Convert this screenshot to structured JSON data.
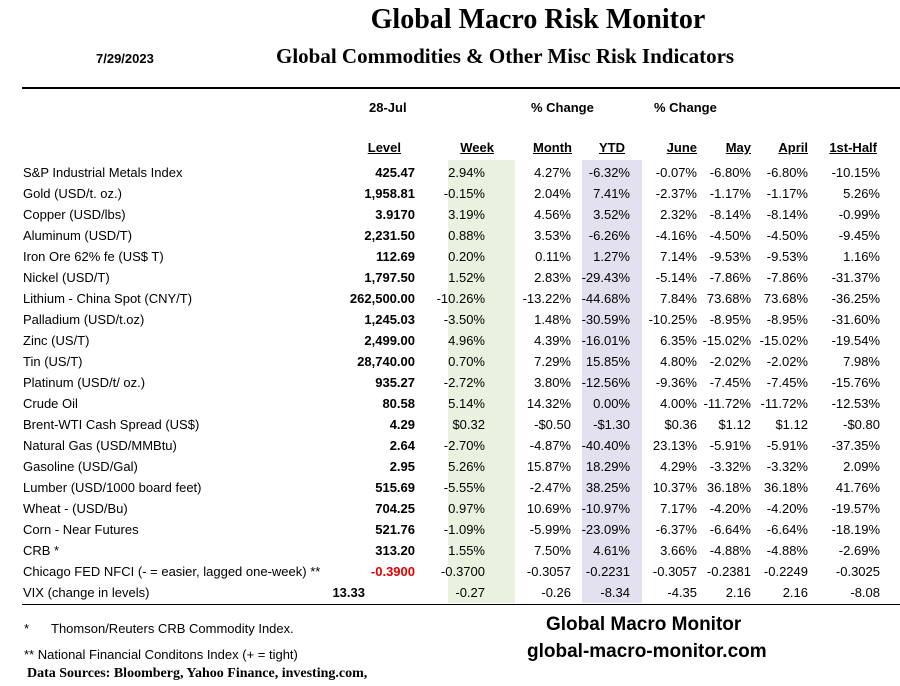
{
  "header": {
    "title": "Global Macro Risk Monitor",
    "subtitle": "Global Commodities & Other Misc Risk Indicators",
    "date": "7/29/2023"
  },
  "table": {
    "date_label": "28-Jul",
    "pct_change_1": "% Change",
    "pct_change_2": "% Change",
    "columns": [
      "Level",
      "Week",
      "Month",
      "YTD",
      "June",
      "May",
      "April",
      "1st-Half"
    ],
    "rows": [
      {
        "name": "S&P Industrial Metals Index",
        "level": "425.47",
        "week": "2.94%",
        "month": "4.27%",
        "ytd": "-6.32%",
        "june": "-0.07%",
        "may": "-6.80%",
        "april": "-6.80%",
        "h1": "-10.15%"
      },
      {
        "name": "Gold (USD/t. oz.)",
        "level": "1,958.81",
        "week": "-0.15%",
        "month": "2.04%",
        "ytd": "7.41%",
        "june": "-2.37%",
        "may": "-1.17%",
        "april": "-1.17%",
        "h1": "5.26%"
      },
      {
        "name": "Copper (USD/lbs)",
        "level": "3.9170",
        "week": "3.19%",
        "month": "4.56%",
        "ytd": "3.52%",
        "june": "2.32%",
        "may": "-8.14%",
        "april": "-8.14%",
        "h1": "-0.99%"
      },
      {
        "name": "Aluminum (USD/T)",
        "level": "2,231.50",
        "week": "0.88%",
        "month": "3.53%",
        "ytd": "-6.26%",
        "june": "-4.16%",
        "may": "-4.50%",
        "april": "-4.50%",
        "h1": "-9.45%"
      },
      {
        "name": "Iron Ore 62% fe (US$ T)",
        "level": "112.69",
        "week": "0.20%",
        "month": "0.11%",
        "ytd": "1.27%",
        "june": "7.14%",
        "may": "-9.53%",
        "april": "-9.53%",
        "h1": "1.16%"
      },
      {
        "name": "Nickel (USD/T)",
        "level": "1,797.50",
        "week": "1.52%",
        "month": "2.83%",
        "ytd": "-29.43%",
        "june": "-5.14%",
        "may": "-7.86%",
        "april": "-7.86%",
        "h1": "-31.37%"
      },
      {
        "name": "Lithium - China Spot (CNY/T)",
        "level": "262,500.00",
        "week": "-10.26%",
        "month": "-13.22%",
        "ytd": "-44.68%",
        "june": "7.84%",
        "may": "73.68%",
        "april": "73.68%",
        "h1": "-36.25%"
      },
      {
        "name": "Palladium (USD/t.oz)",
        "level": "1,245.03",
        "week": "-3.50%",
        "month": "1.48%",
        "ytd": "-30.59%",
        "june": "-10.25%",
        "may": "-8.95%",
        "april": "-8.95%",
        "h1": "-31.60%"
      },
      {
        "name": "Zinc (US/T)",
        "level": "2,499.00",
        "week": "4.96%",
        "month": "4.39%",
        "ytd": "-16.01%",
        "june": "6.35%",
        "may": "-15.02%",
        "april": "-15.02%",
        "h1": "-19.54%"
      },
      {
        "name": "Tin (US/T)",
        "level": "28,740.00",
        "week": "0.70%",
        "month": "7.29%",
        "ytd": "15.85%",
        "june": "4.80%",
        "may": "-2.02%",
        "april": "-2.02%",
        "h1": "7.98%"
      },
      {
        "name": "Platinum (USD/t/ oz.)",
        "level": "935.27",
        "week": "-2.72%",
        "month": "3.80%",
        "ytd": "-12.56%",
        "june": "-9.36%",
        "may": "-7.45%",
        "april": "-7.45%",
        "h1": "-15.76%"
      },
      {
        "name": "Crude Oil",
        "level": "80.58",
        "week": "5.14%",
        "month": "14.32%",
        "ytd": "0.00%",
        "june": "4.00%",
        "may": "-11.72%",
        "april": "-11.72%",
        "h1": "-12.53%"
      },
      {
        "name": "Brent-WTI Cash Spread (US$)",
        "level": "4.29",
        "week": "$0.32",
        "month": "-$0.50",
        "ytd": "-$1.30",
        "june": "$0.36",
        "may": "$1.12",
        "april": "$1.12",
        "h1": "-$0.80"
      },
      {
        "name": "Natural Gas  (USD/MMBtu)",
        "level": "2.64",
        "week": "-2.70%",
        "month": "-4.87%",
        "ytd": "-40.40%",
        "june": "23.13%",
        "may": "-5.91%",
        "april": "-5.91%",
        "h1": "-37.35%"
      },
      {
        "name": "Gasoline (USD/Gal)",
        "level": "2.95",
        "week": "5.26%",
        "month": "15.87%",
        "ytd": "18.29%",
        "june": "4.29%",
        "may": "-3.32%",
        "april": "-3.32%",
        "h1": "2.09%"
      },
      {
        "name": "Lumber (USD/1000 board feet)",
        "level": "515.69",
        "week": "-5.55%",
        "month": "-2.47%",
        "ytd": "38.25%",
        "june": "10.37%",
        "may": "36.18%",
        "april": "36.18%",
        "h1": "41.76%"
      },
      {
        "name": "Wheat - (USD/Bu)",
        "level": "704.25",
        "week": "0.97%",
        "month": "10.69%",
        "ytd": "-10.97%",
        "june": "7.17%",
        "may": "-4.20%",
        "april": "-4.20%",
        "h1": "-19.57%"
      },
      {
        "name": "Corn - Near Futures",
        "level": "521.76",
        "week": "-1.09%",
        "month": "-5.99%",
        "ytd": "-23.09%",
        "june": "-6.37%",
        "may": "-6.64%",
        "april": "-6.64%",
        "h1": "-18.19%"
      },
      {
        "name": "CRB *",
        "level": "313.20",
        "week": "1.55%",
        "month": "7.50%",
        "ytd": "4.61%",
        "june": "3.66%",
        "may": "-4.88%",
        "april": "-4.88%",
        "h1": "-2.69%"
      },
      {
        "name": "Chicago FED NFCI (- = easier, lagged one-week) **",
        "level": "-0.3900",
        "week": "-0.3700",
        "month": "-0.3057",
        "ytd": "-0.2231",
        "june": "-0.3057",
        "may": "-0.2381",
        "april": "-0.2249",
        "h1": "-0.3025"
      },
      {
        "name": "VIX (change in levels)",
        "level": "13.33",
        "week": "-0.27",
        "month": "-0.26",
        "ytd": "-8.34",
        "june": "-4.35",
        "may": "2.16",
        "april": "2.16",
        "h1": "-8.08"
      }
    ]
  },
  "footer": {
    "note1_mark": "*",
    "note1": "Thomson/Reuters CRB Commodity Index.",
    "note2": "** National Financial Conditons Index (+ =  tight)",
    "sources": "Data Sources:  Bloomberg,  Yahoo Finance, investing.com,",
    "brand": "Global Macro Monitor",
    "site": "global-macro-monitor.com"
  },
  "colors": {
    "week_band": "#e9f1df",
    "ytd_band": "#e3e1ef",
    "negative_level": "#e00000"
  }
}
